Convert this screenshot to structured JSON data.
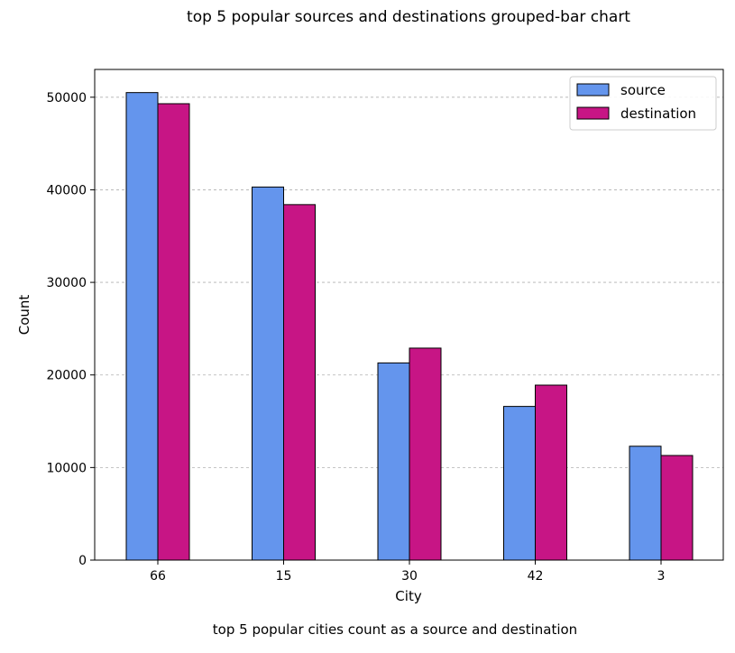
{
  "chart_data": {
    "type": "bar",
    "title": "top 5 popular sources and destinations grouped-bar chart",
    "xlabel": "City",
    "ylabel": "Count",
    "caption": "top 5 popular cities count as a source and destination",
    "categories": [
      "66",
      "15",
      "30",
      "42",
      "3"
    ],
    "series": [
      {
        "name": "source",
        "color": "#6495ED",
        "values": [
          50500,
          40300,
          21300,
          16600,
          12300
        ]
      },
      {
        "name": "destination",
        "color": "#C71585",
        "values": [
          49300,
          38400,
          22900,
          18900,
          11300
        ]
      }
    ],
    "ylim": [
      0,
      53000
    ],
    "yticks": [
      0,
      10000,
      20000,
      30000,
      40000,
      50000
    ],
    "ytick_labels": [
      "0",
      "10000",
      "20000",
      "30000",
      "40000",
      "50000"
    ],
    "grid": "y-dashed",
    "legend_position": "top-right"
  }
}
